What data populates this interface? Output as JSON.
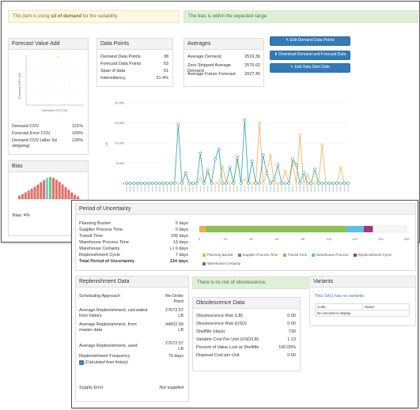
{
  "alerts": {
    "variability_prefix": "This item is using ",
    "variability_bold": "sd of demand",
    "variability_suffix": " for the variability.",
    "bias": "The bias is within the expected range",
    "obsolescence": "There is no risk of obsolescence."
  },
  "fva": {
    "title": "Forecast Value Add",
    "ylabel": "Forecast COV (%)",
    "xlabel": "Demand COV (%)",
    "rows": [
      {
        "label": "Demand COV",
        "value": "121%"
      },
      {
        "label": "Forecast Error COV",
        "value": "109%"
      },
      {
        "label": "Demand COV (after Sd stripping)",
        "value": "126%"
      }
    ]
  },
  "data_points": {
    "title": "Data Points",
    "rows": [
      {
        "label": "Demand Data Points",
        "value": "38"
      },
      {
        "label": "Forecast Data Points",
        "value": "63"
      },
      {
        "label": "Span of data",
        "value": "61"
      },
      {
        "label": "Intermittency",
        "value": "31.4%"
      }
    ]
  },
  "averages": {
    "title": "Averages",
    "rows": [
      {
        "label": "Average Demand",
        "value": "2519.36"
      },
      {
        "label": "Zero Stripped Average Demand",
        "value": "2575.62"
      },
      {
        "label": "Average Future Forecast",
        "value": "2027.45"
      }
    ]
  },
  "buttons": {
    "edit_demand": "Edit Demand Data Points",
    "download": "Download Demand and Forecast Data",
    "edit_start": "Edit Data Start Date"
  },
  "bias": {
    "title": "Bias",
    "label": "Bias: 4%",
    "bars": [
      0.15,
      0.22,
      0.3,
      0.38,
      0.47,
      0.56,
      0.66,
      0.76,
      0.86,
      0.95,
      1.0,
      0.96,
      0.88,
      0.78,
      0.66,
      0.54,
      0.42,
      0.3,
      0.2,
      0.12
    ],
    "colors": {
      "red": "#d9534f",
      "green": "#5cb85c",
      "blue": "#5bc0de"
    }
  },
  "main_chart": {
    "yticks": [
      "20,000",
      "15,000",
      "10,000",
      "5,000",
      "0"
    ],
    "ylabel": "LB",
    "colors": {
      "demand": "#f0ad4e",
      "forecast": "#31a0a0"
    }
  },
  "chart_data": {
    "type": "line",
    "ylim": [
      0,
      20000
    ],
    "ylabel": "LB",
    "x": [
      1,
      2,
      3,
      4,
      5,
      6,
      7,
      8,
      9,
      10,
      11,
      12,
      13,
      14,
      15,
      16,
      17,
      18,
      19,
      20,
      21,
      22,
      23,
      24,
      25,
      26,
      27,
      28,
      29,
      30,
      31,
      32,
      33,
      34,
      35,
      36,
      37,
      38,
      39,
      40,
      41,
      42,
      43,
      44,
      45,
      46,
      47,
      48,
      49,
      50,
      51,
      52,
      53,
      54,
      55,
      56,
      57,
      58,
      59,
      60,
      61
    ],
    "series": [
      {
        "values": [
          0,
          0,
          0,
          0,
          0,
          0,
          0,
          0,
          0,
          0,
          0,
          0,
          0,
          0,
          0,
          0,
          2600,
          0,
          0,
          0,
          1200,
          0,
          3500,
          0,
          0,
          0,
          4200,
          0,
          0,
          0,
          6800,
          0,
          1000,
          0,
          0,
          0,
          15000,
          0,
          2500,
          7000,
          0,
          0,
          0,
          3000,
          0,
          5200,
          0,
          12000,
          0,
          2100,
          0,
          0,
          0,
          9500,
          0,
          0,
          0,
          0,
          4000,
          0,
          0
        ]
      },
      {
        "values": [
          0,
          0,
          0,
          0,
          0,
          0,
          0,
          0,
          0,
          0,
          0,
          0,
          0,
          0,
          14500,
          0,
          2500,
          0,
          0,
          0,
          7500,
          0,
          3000,
          0,
          6000,
          8500,
          0,
          0,
          4000,
          0,
          6300,
          0,
          15700,
          0,
          5500,
          0,
          0,
          7000,
          2500,
          0,
          1000,
          4500,
          0,
          0,
          0,
          6000,
          4500,
          0,
          2700,
          0,
          0,
          3500,
          0,
          0,
          0,
          0,
          0,
          0,
          0,
          0,
          0
        ]
      }
    ]
  },
  "pou": {
    "title": "Period of Uncertainty",
    "rows": [
      {
        "label": "Planning Bucket",
        "value": "5 days"
      },
      {
        "label": "Supplier Process Time",
        "value": "0 days"
      },
      {
        "label": "Transit Time",
        "value": "109 days"
      },
      {
        "label": "Warehouse Process Time",
        "value": "13 days"
      },
      {
        "label": "Warehouse Certainty",
        "value": "(-) 0 days"
      },
      {
        "label": "Replenishment Cycle",
        "value": "7 days"
      },
      {
        "label": "Total Period of Uncertainty",
        "value": "134 days"
      }
    ],
    "axis": [
      "0",
      "20",
      "40",
      "60",
      "80",
      "100",
      "120",
      "140",
      "160"
    ],
    "segments": [
      {
        "name": "Planning Bucket",
        "days": 5,
        "color": "#f0ad4e"
      },
      {
        "name": "Supplier Process Time",
        "days": 0,
        "color": "#428bca"
      },
      {
        "name": "Transit Time",
        "days": 109,
        "color": "#8cc152"
      },
      {
        "name": "Warehouse Process",
        "days": 13,
        "color": "#5bc0de"
      },
      {
        "name": "Replenishment Cycle",
        "days": 7,
        "color": "#a3367a"
      },
      {
        "name": "Warehouse Certainty",
        "days": 0,
        "color": "#7c5f9c"
      }
    ]
  },
  "replenishment": {
    "title": "Replenishment Data",
    "approach_label": "Scheduling Approach",
    "approach_value": "Re-Order Point",
    "calc_label": "Average Replenishment, calculated from history",
    "calc_value": "27672.57",
    "calc_unit": "LB",
    "master_label": "Average Replenishment, from master data",
    "master_value": "44002.00",
    "master_unit": "LB",
    "used_label": "Average Replenishment, used",
    "used_value": "27672.57",
    "used_unit": "LB",
    "freq_label": "Replenishment Frequency",
    "freq_value": "70 days",
    "calc_note": "(Calculated from history)",
    "supply_label": "Supply Error",
    "supply_value": "Not supplied"
  },
  "obsolescence": {
    "title": "Obsolescence Data",
    "rows": [
      {
        "label": "Obsolescence Risk (LB)",
        "value": "0.00"
      },
      {
        "label": "Obsolescence Risk (USD)",
        "value": "0.00"
      },
      {
        "label": "Shelflife (days)",
        "value": "730"
      },
      {
        "label": "Variable Cost Per Unit (USD/LB)",
        "value": "1.13"
      },
      {
        "label": "Percent of Value Lost at Shelflife",
        "value": "100.00%"
      },
      {
        "label": "Disposal Cost per Unit",
        "value": "0.00"
      }
    ]
  },
  "variants": {
    "title": "Variants",
    "link": "This SKU has no variants",
    "col_code": "Code",
    "col_name": "Name",
    "empty": "No records to display."
  }
}
